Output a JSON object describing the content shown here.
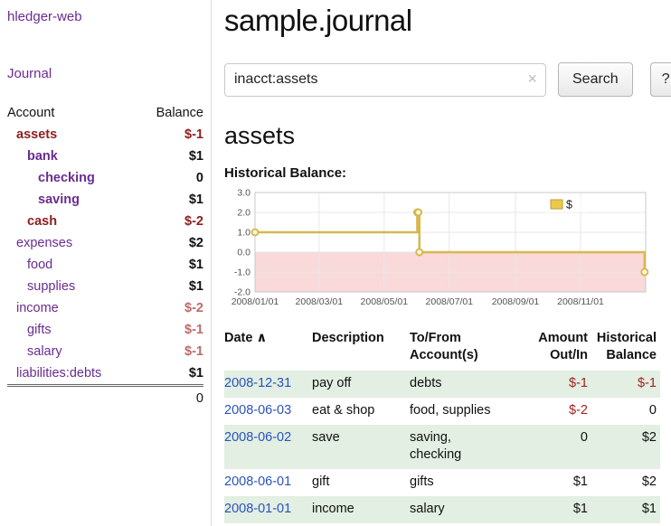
{
  "sidebar": {
    "brand": "hledger-web",
    "nav": {
      "journal": "Journal"
    },
    "table": {
      "account_header": "Account",
      "balance_header": "Balance",
      "rows": [
        {
          "account": "assets",
          "balance": "$-1",
          "indent": 1,
          "name_class": "neg-bold",
          "bal_class": "neg"
        },
        {
          "account": "bank",
          "balance": "$1",
          "indent": 2,
          "name_class": "purple-bold",
          "bal_class": "black"
        },
        {
          "account": "checking",
          "balance": "0",
          "indent": 3,
          "name_class": "purple-bold",
          "bal_class": "black"
        },
        {
          "account": "saving",
          "balance": "$1",
          "indent": 3,
          "name_class": "purple-bold",
          "bal_class": "black"
        },
        {
          "account": "cash",
          "balance": "$-2",
          "indent": 2,
          "name_class": "neg-bold",
          "bal_class": "neg"
        },
        {
          "account": "expenses",
          "balance": "$2",
          "indent": 1,
          "name_class": "purple",
          "bal_class": "black"
        },
        {
          "account": "food",
          "balance": "$1",
          "indent": 2,
          "name_class": "purple",
          "bal_class": "black"
        },
        {
          "account": "supplies",
          "balance": "$1",
          "indent": 2,
          "name_class": "purple",
          "bal_class": "black"
        },
        {
          "account": "income",
          "balance": "$-2",
          "indent": 1,
          "name_class": "purple",
          "bal_class": "neg-soft"
        },
        {
          "account": "gifts",
          "balance": "$-1",
          "indent": 2,
          "name_class": "purple",
          "bal_class": "neg-soft"
        },
        {
          "account": "salary",
          "balance": "$-1",
          "indent": 2,
          "name_class": "purple",
          "bal_class": "neg-soft"
        },
        {
          "account": "liabilities:debts",
          "balance": "$1",
          "indent": 1,
          "name_class": "purple",
          "bal_class": "black"
        }
      ],
      "total": "0"
    }
  },
  "header": {
    "title": "sample.journal"
  },
  "search": {
    "value": "inacct:assets",
    "clear_icon": "×",
    "button_label": "Search",
    "help_label": "?"
  },
  "account_page": {
    "heading": "assets",
    "chart_title": "Historical Balance:"
  },
  "chart_data": {
    "type": "line",
    "step": true,
    "title": "Historical Balance",
    "series": [
      {
        "name": "$",
        "x": [
          "2008-01-01",
          "2008-06-01",
          "2008-06-02",
          "2008-06-03",
          "2008-12-31"
        ],
        "y": [
          1,
          2,
          2,
          0,
          -1
        ]
      }
    ],
    "x_range": [
      "2008-01-01",
      "2009-01-01"
    ],
    "ylim": [
      -2,
      3
    ],
    "ytick_values": [
      3,
      2,
      1,
      0,
      -1,
      -2
    ],
    "ytick_labels": [
      "3.0",
      "2.0",
      "1.0",
      "0.0",
      "-1.0",
      "-2.0"
    ],
    "xtick_dates": [
      "2008-01-01",
      "2008-03-01",
      "2008-05-01",
      "2008-07-01",
      "2008-09-01",
      "2008-11-01"
    ],
    "xtick_labels": [
      "2008/01/01",
      "2008/03/01",
      "2008/05/01",
      "2008/07/01",
      "2008/09/01",
      "2008/11/01"
    ],
    "legend": {
      "label": "$",
      "position": "top-right",
      "swatch_color": "#ecc94e"
    },
    "grid": true,
    "line_color": "#d8b84e",
    "marker_fill": "#fdf8e3",
    "negative_region_color": "#f9d9d9"
  },
  "register": {
    "headers": {
      "date": "Date",
      "sort_indicator": "∧",
      "description": "Description",
      "account": "To/From Account(s)",
      "amount": "Amount Out/In",
      "balance": "Historical Balance"
    },
    "rows": [
      {
        "date": "2008-12-31",
        "description": "pay off",
        "accounts": "debts",
        "amount": "$-1",
        "amount_neg": true,
        "balance": "$-1",
        "balance_neg": true
      },
      {
        "date": "2008-06-03",
        "description": "eat & shop",
        "accounts": "food, supplies",
        "amount": "$-2",
        "amount_neg": true,
        "balance": "0",
        "balance_neg": false
      },
      {
        "date": "2008-06-02",
        "description": "save",
        "accounts": "saving, checking",
        "amount": "0",
        "amount_neg": false,
        "balance": "$2",
        "balance_neg": false
      },
      {
        "date": "2008-06-01",
        "description": "gift",
        "accounts": "gifts",
        "amount": "$1",
        "amount_neg": false,
        "balance": "$2",
        "balance_neg": false
      },
      {
        "date": "2008-01-01",
        "description": "income",
        "accounts": "salary",
        "amount": "$1",
        "amount_neg": false,
        "balance": "$1",
        "balance_neg": false
      }
    ]
  },
  "colors": {
    "link_purple": "#6a2c91",
    "link_blue": "#2a52be",
    "negative_strong": "#8f2020",
    "negative_soft": "#bc6a6a",
    "register_negative": "#a32222",
    "row_stripe_green": "#e2efe2",
    "chart_line_gold": "#d8b84e",
    "chart_negative_pink": "#f9d9d9"
  }
}
